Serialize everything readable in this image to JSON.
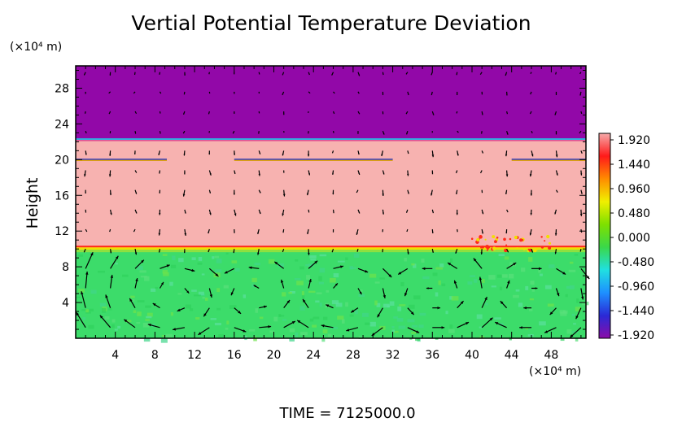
{
  "chart_data": {
    "type": "heatmap",
    "title": "Vertial Potential Temperature Deviation",
    "ylabel": "Height",
    "y_unit": "(×10⁴ m)",
    "x_unit": "(×10⁴ m)",
    "x_ticks": [
      "4",
      "8",
      "12",
      "16",
      "20",
      "24",
      "28",
      "32",
      "36",
      "40",
      "44",
      "48"
    ],
    "y_ticks": [
      "4",
      "8",
      "12",
      "16",
      "20",
      "24",
      "28"
    ],
    "xlim": [
      0,
      51.5
    ],
    "ylim": [
      0,
      30.5
    ],
    "colorbar": {
      "labels": [
        "1.920",
        "1.440",
        "0.960",
        "0.480",
        "0.000",
        "-0.480",
        "-0.960",
        "-1.440",
        "-1.920"
      ],
      "range": [
        -1.92,
        1.92
      ],
      "colors": [
        "#8b0ca8",
        "#2a2ad6",
        "#1e90ff",
        "#20e0e0",
        "#3ad84a",
        "#7ee000",
        "#f0f000",
        "#ff8c00",
        "#ff1a1a",
        "#f5aaaa"
      ]
    },
    "regions": [
      {
        "label": "upper layer",
        "y_range": [
          22.3,
          30.5
        ],
        "color": "#9208a8"
      },
      {
        "label": "middle layer",
        "y_range": [
          10,
          22.3
        ],
        "color": "#f7b2b0"
      },
      {
        "label": "lower layer",
        "y_range": [
          0,
          10
        ],
        "color": "#3cdc6a"
      }
    ],
    "grid": false,
    "vector_field": true,
    "footer": "TIME  =  7125000.0"
  }
}
